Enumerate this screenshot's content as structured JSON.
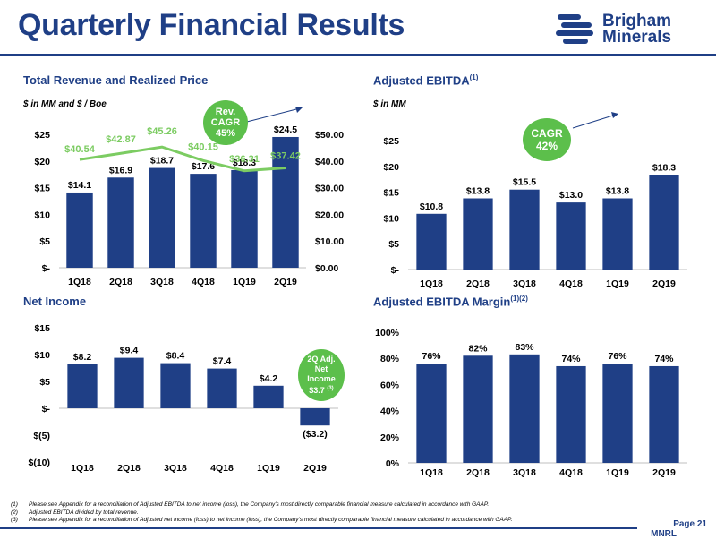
{
  "title": "Quarterly Financial Results",
  "logo": {
    "line1": "Brigham",
    "line2": "Minerals"
  },
  "sections": {
    "revenue": {
      "title": "Total Revenue and Realized Price",
      "unit": "$ in MM and $ / Boe"
    },
    "ebitda": {
      "title": "Adjusted EBITDA",
      "sup": "(1)",
      "unit": "$ in MM"
    },
    "net_income": {
      "title": "Net Income"
    },
    "margin": {
      "title": "Adjusted EBITDA Margin",
      "sup": "(1)(2)"
    }
  },
  "bubbles": {
    "revenue": {
      "l1": "Rev.",
      "l2": "CAGR",
      "l3": "45%"
    },
    "ebitda": {
      "l1": "CAGR",
      "l2": "42%"
    },
    "net_income": {
      "l1": "2Q Adj.",
      "l2": "Net",
      "l3": "Income",
      "l4": "$3.7",
      "sup": "(3)"
    }
  },
  "chart_data": [
    {
      "type": "bar",
      "title": "Total Revenue and Realized Price",
      "categories": [
        "1Q18",
        "2Q18",
        "3Q18",
        "4Q18",
        "1Q19",
        "2Q19"
      ],
      "values": [
        14.1,
        16.9,
        18.7,
        17.6,
        18.3,
        24.5
      ],
      "labels": [
        "$14.1",
        "$16.9",
        "$18.7",
        "$17.6",
        "$18.3",
        "$24.5"
      ],
      "ylim": [
        0,
        25
      ],
      "yticks": [
        "$-",
        "$5",
        "$10",
        "$15",
        "$20",
        "$25"
      ],
      "secondary": {
        "type": "line",
        "values": [
          40.54,
          42.87,
          45.26,
          40.15,
          36.31,
          37.42
        ],
        "labels": [
          "$40.54",
          "$42.87",
          "$45.26",
          "$40.15",
          "$36.31",
          "$37.42"
        ],
        "ylim": [
          0,
          50
        ],
        "yticks": [
          "$0.00",
          "$10.00",
          "$20.00",
          "$30.00",
          "$40.00",
          "$50.00"
        ]
      }
    },
    {
      "type": "bar",
      "title": "Adjusted EBITDA",
      "categories": [
        "1Q18",
        "2Q18",
        "3Q18",
        "4Q18",
        "1Q19",
        "2Q19"
      ],
      "values": [
        10.8,
        13.8,
        15.5,
        13.0,
        13.8,
        18.3
      ],
      "labels": [
        "$10.8",
        "$13.8",
        "$15.5",
        "$13.0",
        "$13.8",
        "$18.3"
      ],
      "ylim": [
        0,
        25
      ],
      "yticks": [
        "$-",
        "$5",
        "$10",
        "$15",
        "$20",
        "$25"
      ]
    },
    {
      "type": "bar",
      "title": "Net Income",
      "categories": [
        "1Q18",
        "2Q18",
        "3Q18",
        "4Q18",
        "1Q19",
        "2Q19"
      ],
      "values": [
        8.2,
        9.4,
        8.4,
        7.4,
        4.2,
        -3.2
      ],
      "labels": [
        "$8.2",
        "$9.4",
        "$8.4",
        "$7.4",
        "$4.2",
        "($3.2)"
      ],
      "ylim": [
        -10,
        15
      ],
      "yticks": [
        "$(10)",
        "$(5)",
        "$-",
        "$5",
        "$10",
        "$15"
      ]
    },
    {
      "type": "bar",
      "title": "Adjusted EBITDA Margin",
      "categories": [
        "1Q18",
        "2Q18",
        "3Q18",
        "4Q18",
        "1Q19",
        "2Q19"
      ],
      "values": [
        76,
        82,
        83,
        74,
        76,
        74
      ],
      "labels": [
        "76%",
        "82%",
        "83%",
        "74%",
        "76%",
        "74%"
      ],
      "ylim": [
        0,
        100
      ],
      "yticks": [
        "0%",
        "20%",
        "40%",
        "60%",
        "80%",
        "100%"
      ]
    }
  ],
  "footnotes": [
    {
      "num": "(1)",
      "text": "Please see Appendix for a reconciliation of Adjusted EBITDA to net income (loss), the Company's most directly comparable financial measure calculated in accordance with GAAP."
    },
    {
      "num": "(2)",
      "text": "Adjusted EBITDA divided by total revenue."
    },
    {
      "num": "(3)",
      "text": "Please see Appendix for a reconciliation of Adjusted net income (loss) to net income (loss), the Company's most directly comparable financial measure calculated in accordance with GAAP."
    }
  ],
  "page": "Page 21",
  "ticker": "MNRL",
  "colors": {
    "bar": "#1f3f86",
    "line": "#7ccc62",
    "bubble": "#5cbf4b",
    "accent": "#1f3f86"
  }
}
